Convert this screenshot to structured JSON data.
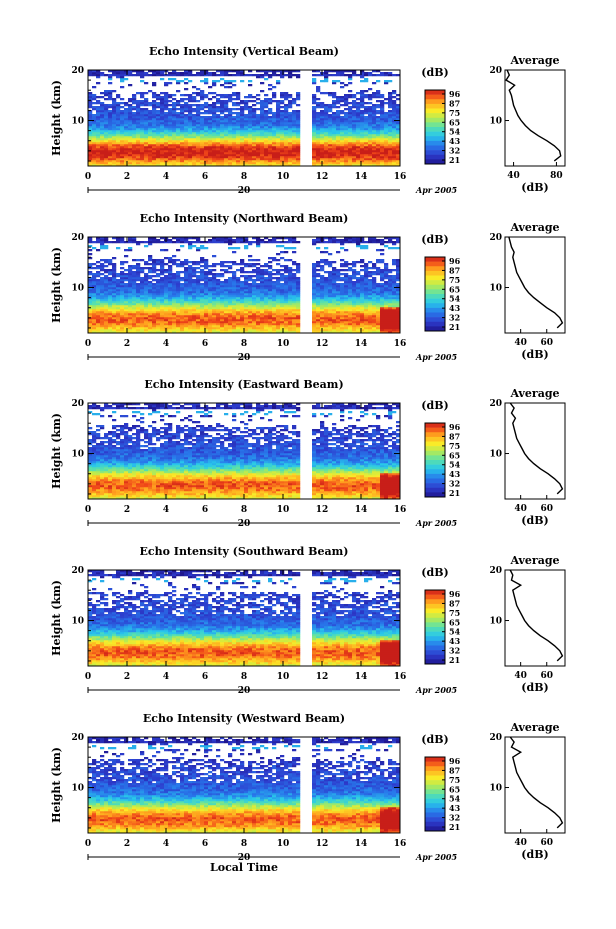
{
  "chart_data": [
    {
      "type": "heatmap",
      "title": "Echo Intensity (Vertical Beam)",
      "ylabel": "Height (km)",
      "xticks": [
        "0",
        "2",
        "4",
        "6",
        "8",
        "10",
        "12",
        "14",
        "16"
      ],
      "yticks": [
        "10",
        "20"
      ],
      "date_day": "20",
      "date_label": "Apr 2005",
      "colorbar_unit": "(dB)",
      "colorbar_ticks": [
        "96",
        "87",
        "75",
        "65",
        "54",
        "43",
        "32",
        "21"
      ],
      "profile": {
        "title": "Average",
        "xticks": [
          "40",
          "80"
        ],
        "xlabel": "(dB)",
        "yticks": [
          "10",
          "20"
        ],
        "height_km": [
          2,
          3,
          4,
          5,
          6,
          7,
          8,
          9,
          10,
          11,
          12,
          13,
          14,
          15,
          16,
          17,
          18,
          19,
          20
        ],
        "value_db": [
          78,
          84,
          83,
          78,
          71,
          63,
          56,
          51,
          47,
          44,
          42,
          40,
          39,
          38,
          36,
          41,
          33,
          36,
          34
        ]
      }
    },
    {
      "type": "heatmap",
      "title": "Echo Intensity (Northward Beam)",
      "ylabel": "Height (km)",
      "xticks": [
        "0",
        "2",
        "4",
        "6",
        "8",
        "10",
        "12",
        "14",
        "16"
      ],
      "yticks": [
        "10",
        "20"
      ],
      "date_day": "20",
      "date_label": "Apr 2005",
      "colorbar_unit": "(dB)",
      "colorbar_ticks": [
        "96",
        "87",
        "75",
        "65",
        "54",
        "43",
        "32",
        "21"
      ],
      "profile": {
        "title": "Average",
        "xticks": [
          "40",
          "60"
        ],
        "xlabel": "(dB)",
        "yticks": [
          "10",
          "20"
        ],
        "height_km": [
          2,
          3,
          4,
          5,
          6,
          7,
          8,
          9,
          10,
          11,
          12,
          13,
          14,
          15,
          16,
          17,
          18,
          19,
          20
        ],
        "value_db": [
          68,
          72,
          70,
          66,
          60,
          55,
          50,
          46,
          43,
          41,
          39,
          37,
          36,
          35,
          34,
          35,
          33,
          32,
          31
        ]
      }
    },
    {
      "type": "heatmap",
      "title": "Echo Intensity (Eastward Beam)",
      "ylabel": "Height (km)",
      "xticks": [
        "0",
        "2",
        "4",
        "6",
        "8",
        "10",
        "12",
        "14",
        "16"
      ],
      "yticks": [
        "10",
        "20"
      ],
      "date_day": "20",
      "date_label": "Apr 2005",
      "colorbar_unit": "(dB)",
      "colorbar_ticks": [
        "96",
        "87",
        "75",
        "65",
        "54",
        "43",
        "32",
        "21"
      ],
      "profile": {
        "title": "Average",
        "xticks": [
          "40",
          "60"
        ],
        "xlabel": "(dB)",
        "yticks": [
          "10",
          "20"
        ],
        "height_km": [
          2,
          3,
          4,
          5,
          6,
          7,
          8,
          9,
          10,
          11,
          12,
          13,
          14,
          15,
          16,
          17,
          18,
          19,
          20
        ],
        "value_db": [
          68,
          72,
          70,
          66,
          61,
          55,
          50,
          46,
          43,
          41,
          39,
          37,
          36,
          35,
          34,
          36,
          33,
          35,
          32
        ]
      }
    },
    {
      "type": "heatmap",
      "title": "Echo Intensity (Southward Beam)",
      "ylabel": "Height (km)",
      "xticks": [
        "0",
        "2",
        "4",
        "6",
        "8",
        "10",
        "12",
        "14",
        "16"
      ],
      "yticks": [
        "10",
        "20"
      ],
      "date_day": "20",
      "date_label": "Apr 2005",
      "colorbar_unit": "(dB)",
      "colorbar_ticks": [
        "96",
        "87",
        "75",
        "65",
        "54",
        "43",
        "32",
        "21"
      ],
      "profile": {
        "title": "Average",
        "xticks": [
          "40",
          "60"
        ],
        "xlabel": "(dB)",
        "yticks": [
          "10",
          "20"
        ],
        "height_km": [
          2,
          3,
          4,
          5,
          6,
          7,
          8,
          9,
          10,
          11,
          12,
          13,
          14,
          15,
          16,
          17,
          18,
          19,
          20
        ],
        "value_db": [
          68,
          72,
          70,
          66,
          61,
          55,
          50,
          46,
          43,
          41,
          39,
          37,
          36,
          35,
          34,
          40,
          33,
          34,
          32
        ]
      }
    },
    {
      "type": "heatmap",
      "title": "Echo Intensity (Westward Beam)",
      "ylabel": "Height (km)",
      "xlabel": "Local Time",
      "xticks": [
        "0",
        "2",
        "4",
        "6",
        "8",
        "10",
        "12",
        "14",
        "16"
      ],
      "yticks": [
        "10",
        "20"
      ],
      "date_day": "20",
      "date_label": "Apr 2005",
      "colorbar_unit": "(dB)",
      "colorbar_ticks": [
        "96",
        "87",
        "75",
        "65",
        "54",
        "43",
        "32",
        "21"
      ],
      "profile": {
        "title": "Average",
        "xticks": [
          "40",
          "60"
        ],
        "xlabel": "(dB)",
        "yticks": [
          "10",
          "20"
        ],
        "height_km": [
          2,
          3,
          4,
          5,
          6,
          7,
          8,
          9,
          10,
          11,
          12,
          13,
          14,
          15,
          16,
          17,
          18,
          19,
          20
        ],
        "value_db": [
          68,
          72,
          70,
          66,
          61,
          55,
          50,
          46,
          43,
          41,
          39,
          37,
          36,
          35,
          34,
          40,
          33,
          35,
          32
        ]
      }
    }
  ]
}
